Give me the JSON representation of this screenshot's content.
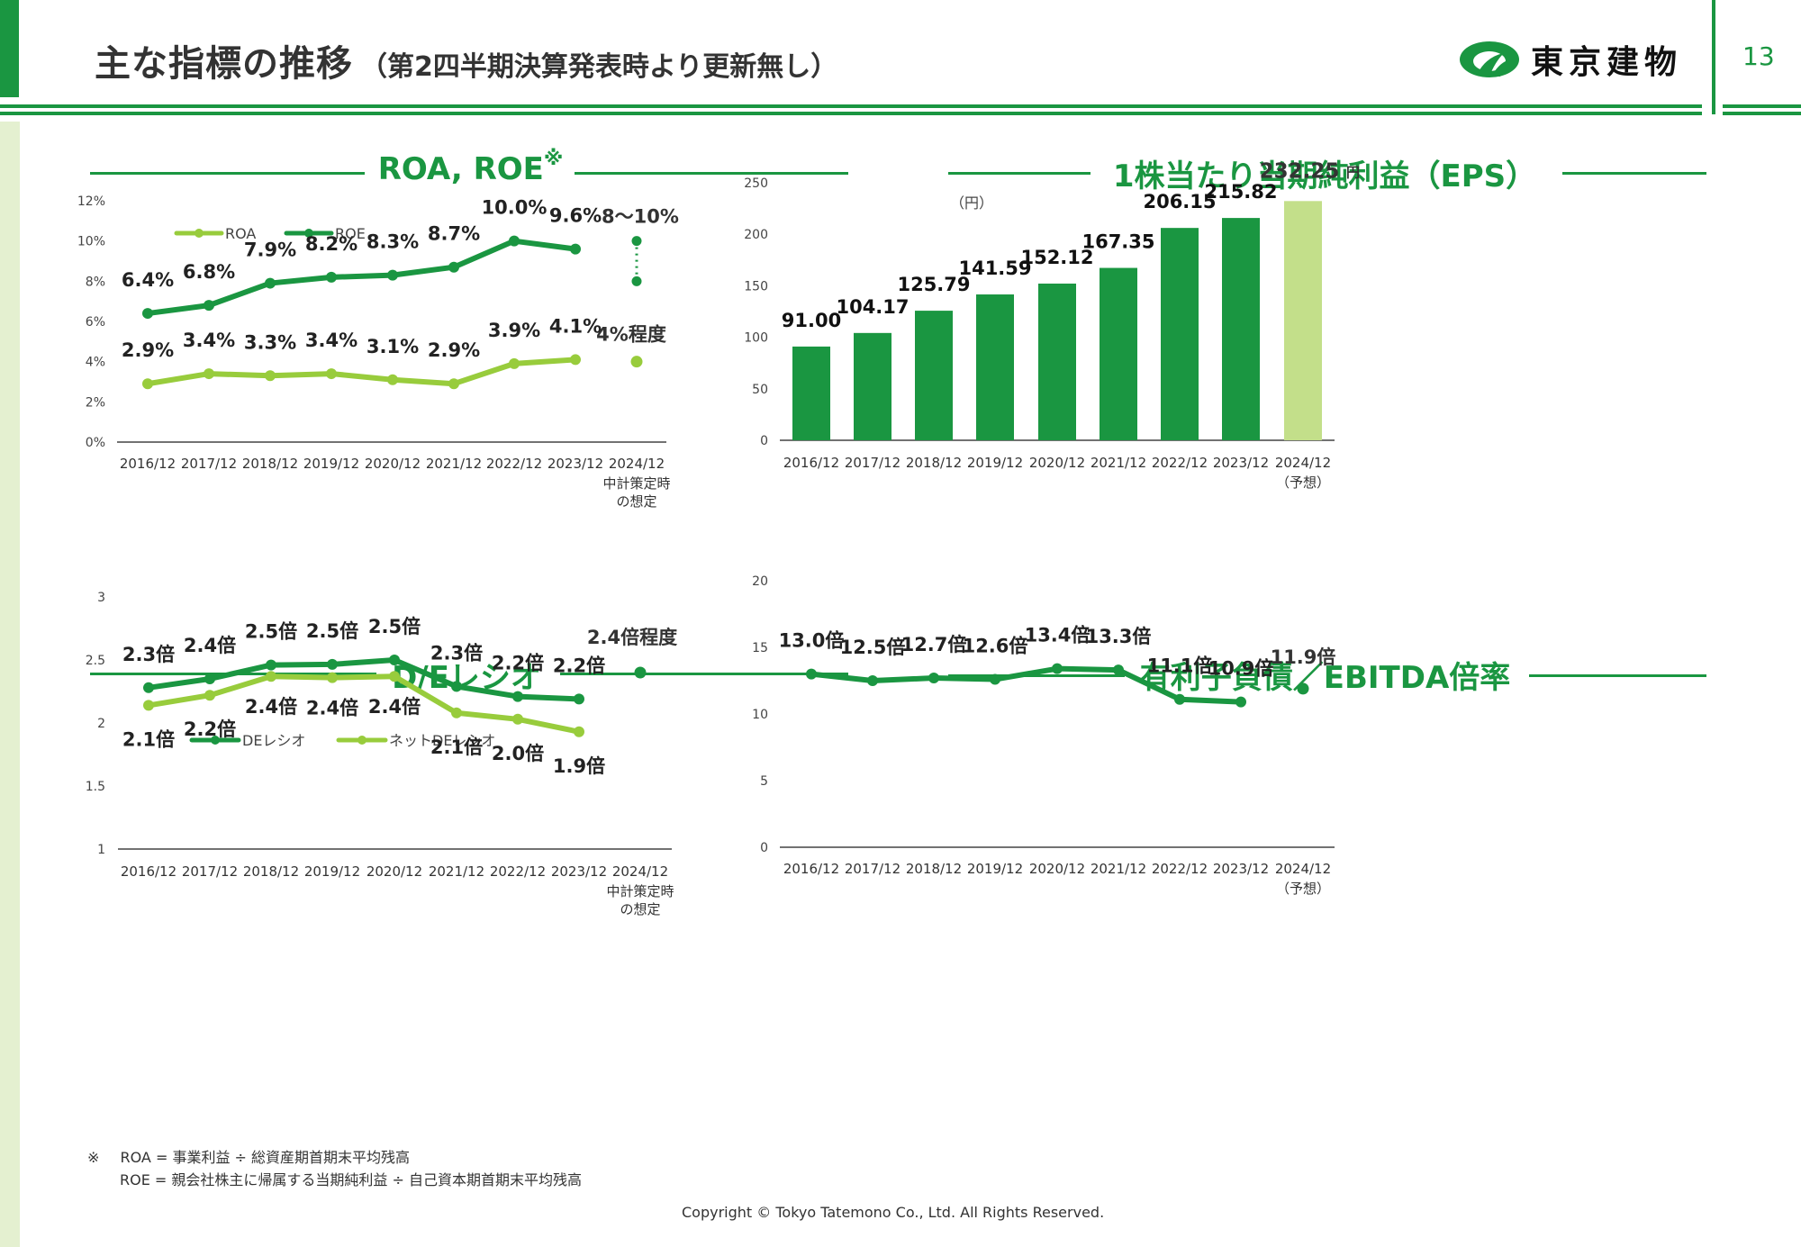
{
  "header": {
    "title": "主な指標の推移",
    "subtitle": "（第2四半期決算発表時より更新無し）",
    "company_name": "東京建物",
    "page_number": "13"
  },
  "colors": {
    "dark_green": "#1a9641",
    "light_green": "#98cc3c",
    "pale_green": "#c3df8a"
  },
  "footnotes": {
    "mark": "※",
    "roa_def": "ROA = 事業利益 ÷ 総資産期首期末平均残高",
    "roe_def": "ROE = 親会社株主に帰属する当期純利益 ÷ 自己資本期首期末平均残高"
  },
  "copyright": "Copyright © Tokyo Tatemono Co., Ltd. All Rights Reserved.",
  "chart_data": [
    {
      "id": "roa_roe",
      "type": "line",
      "title": "ROA, ROE",
      "title_mark": "※",
      "categories": [
        "2016/12",
        "2017/12",
        "2018/12",
        "2019/12",
        "2020/12",
        "2021/12",
        "2022/12",
        "2023/12",
        "2024/12"
      ],
      "category_sublabels": [
        "",
        "",
        "",
        "",
        "",
        "",
        "",
        "",
        "中計策定時\nの想定"
      ],
      "yticks": [
        "0%",
        "2%",
        "4%",
        "6%",
        "8%",
        "10%",
        "12%"
      ],
      "ylim": [
        0,
        12
      ],
      "legend": [
        "ROA",
        "ROE"
      ],
      "legend_position": "top-left",
      "series": [
        {
          "name": "ROA",
          "color": "#98cc3c",
          "values": [
            2.9,
            3.4,
            3.3,
            3.4,
            3.1,
            2.9,
            3.9,
            4.1
          ],
          "labels": [
            "2.9%",
            "3.4%",
            "3.3%",
            "3.4%",
            "3.1%",
            "2.9%",
            "3.9%",
            "4.1%"
          ],
          "target": {
            "value": 4.0,
            "label": "4%程度"
          }
        },
        {
          "name": "ROE",
          "color": "#1a9641",
          "values": [
            6.4,
            6.8,
            7.9,
            8.2,
            8.3,
            8.7,
            10.0,
            9.6
          ],
          "labels": [
            "6.4%",
            "6.8%",
            "7.9%",
            "8.2%",
            "8.3%",
            "8.7%",
            "10.0%",
            "9.6%"
          ],
          "target": {
            "range": [
              8,
              10
            ],
            "label": "8～10%"
          }
        }
      ]
    },
    {
      "id": "eps",
      "type": "bar",
      "title": "1株当たり当期純利益（EPS）",
      "unit_label": "（円）",
      "categories": [
        "2016/12",
        "2017/12",
        "2018/12",
        "2019/12",
        "2020/12",
        "2021/12",
        "2022/12",
        "2023/12",
        "2024/12"
      ],
      "category_sublabels": [
        "",
        "",
        "",
        "",
        "",
        "",
        "",
        "",
        "（予想）"
      ],
      "yticks": [
        "0",
        "50",
        "100",
        "150",
        "200",
        "250"
      ],
      "ylim": [
        0,
        250
      ],
      "values": [
        91.0,
        104.17,
        125.79,
        141.59,
        152.12,
        167.35,
        206.15,
        215.82,
        232.25
      ],
      "labels": [
        "91.00",
        "104.17",
        "125.79",
        "141.59",
        "152.12",
        "167.35",
        "206.15",
        "215.82",
        "232.25"
      ],
      "forecast_unit": "円",
      "colors": [
        "#1a9641",
        "#1a9641",
        "#1a9641",
        "#1a9641",
        "#1a9641",
        "#1a9641",
        "#1a9641",
        "#1a9641",
        "#c3df8a"
      ]
    },
    {
      "id": "de_ratio",
      "type": "line",
      "title": "D/Eレシオ",
      "categories": [
        "2016/12",
        "2017/12",
        "2018/12",
        "2019/12",
        "2020/12",
        "2021/12",
        "2022/12",
        "2023/12",
        "2024/12"
      ],
      "category_sublabels": [
        "",
        "",
        "",
        "",
        "",
        "",
        "",
        "",
        "中計策定時\nの想定"
      ],
      "yticks": [
        "1",
        "1.5",
        "2",
        "2.5",
        "3"
      ],
      "ylim": [
        1,
        3
      ],
      "legend": [
        "DEレシオ",
        "ネットDEレシオ"
      ],
      "legend_position": "top-left",
      "series": [
        {
          "name": "DEレシオ",
          "color": "#1a9641",
          "values": [
            2.28,
            2.35,
            2.46,
            2.465,
            2.5,
            2.29,
            2.21,
            2.19
          ],
          "labels": [
            "2.3倍",
            "2.4倍",
            "2.5倍",
            "2.5倍",
            "2.5倍",
            "2.3倍",
            "2.2倍",
            "2.2倍"
          ],
          "target": {
            "value": 2.4,
            "label": "2.4倍程度"
          }
        },
        {
          "name": "ネットDEレシオ",
          "color": "#98cc3c",
          "values": [
            2.14,
            2.22,
            2.37,
            2.36,
            2.37,
            2.08,
            2.03,
            1.93
          ],
          "labels": [
            "2.1倍",
            "2.2倍",
            "2.4倍",
            "2.4倍",
            "2.4倍",
            "2.1倍",
            "2.0倍",
            "1.9倍"
          ]
        }
      ]
    },
    {
      "id": "debt_ebitda",
      "type": "line",
      "title": "有利子負債／EBITDA倍率",
      "categories": [
        "2016/12",
        "2017/12",
        "2018/12",
        "2019/12",
        "2020/12",
        "2021/12",
        "2022/12",
        "2023/12",
        "2024/12"
      ],
      "category_sublabels": [
        "",
        "",
        "",
        "",
        "",
        "",
        "",
        "",
        "（予想）"
      ],
      "yticks": [
        "0",
        "5",
        "10",
        "15",
        "20"
      ],
      "ylim": [
        0,
        20
      ],
      "series": [
        {
          "name": "有利子負債／EBITDA倍率",
          "color": "#1a9641",
          "values": [
            13.0,
            12.5,
            12.7,
            12.6,
            13.4,
            13.3,
            11.1,
            10.9
          ],
          "labels": [
            "13.0倍",
            "12.5倍",
            "12.7倍",
            "12.6倍",
            "13.4倍",
            "13.3倍",
            "11.1倍",
            "10.9倍"
          ],
          "target": {
            "value": 11.9,
            "label": "11.9倍"
          }
        }
      ]
    }
  ]
}
